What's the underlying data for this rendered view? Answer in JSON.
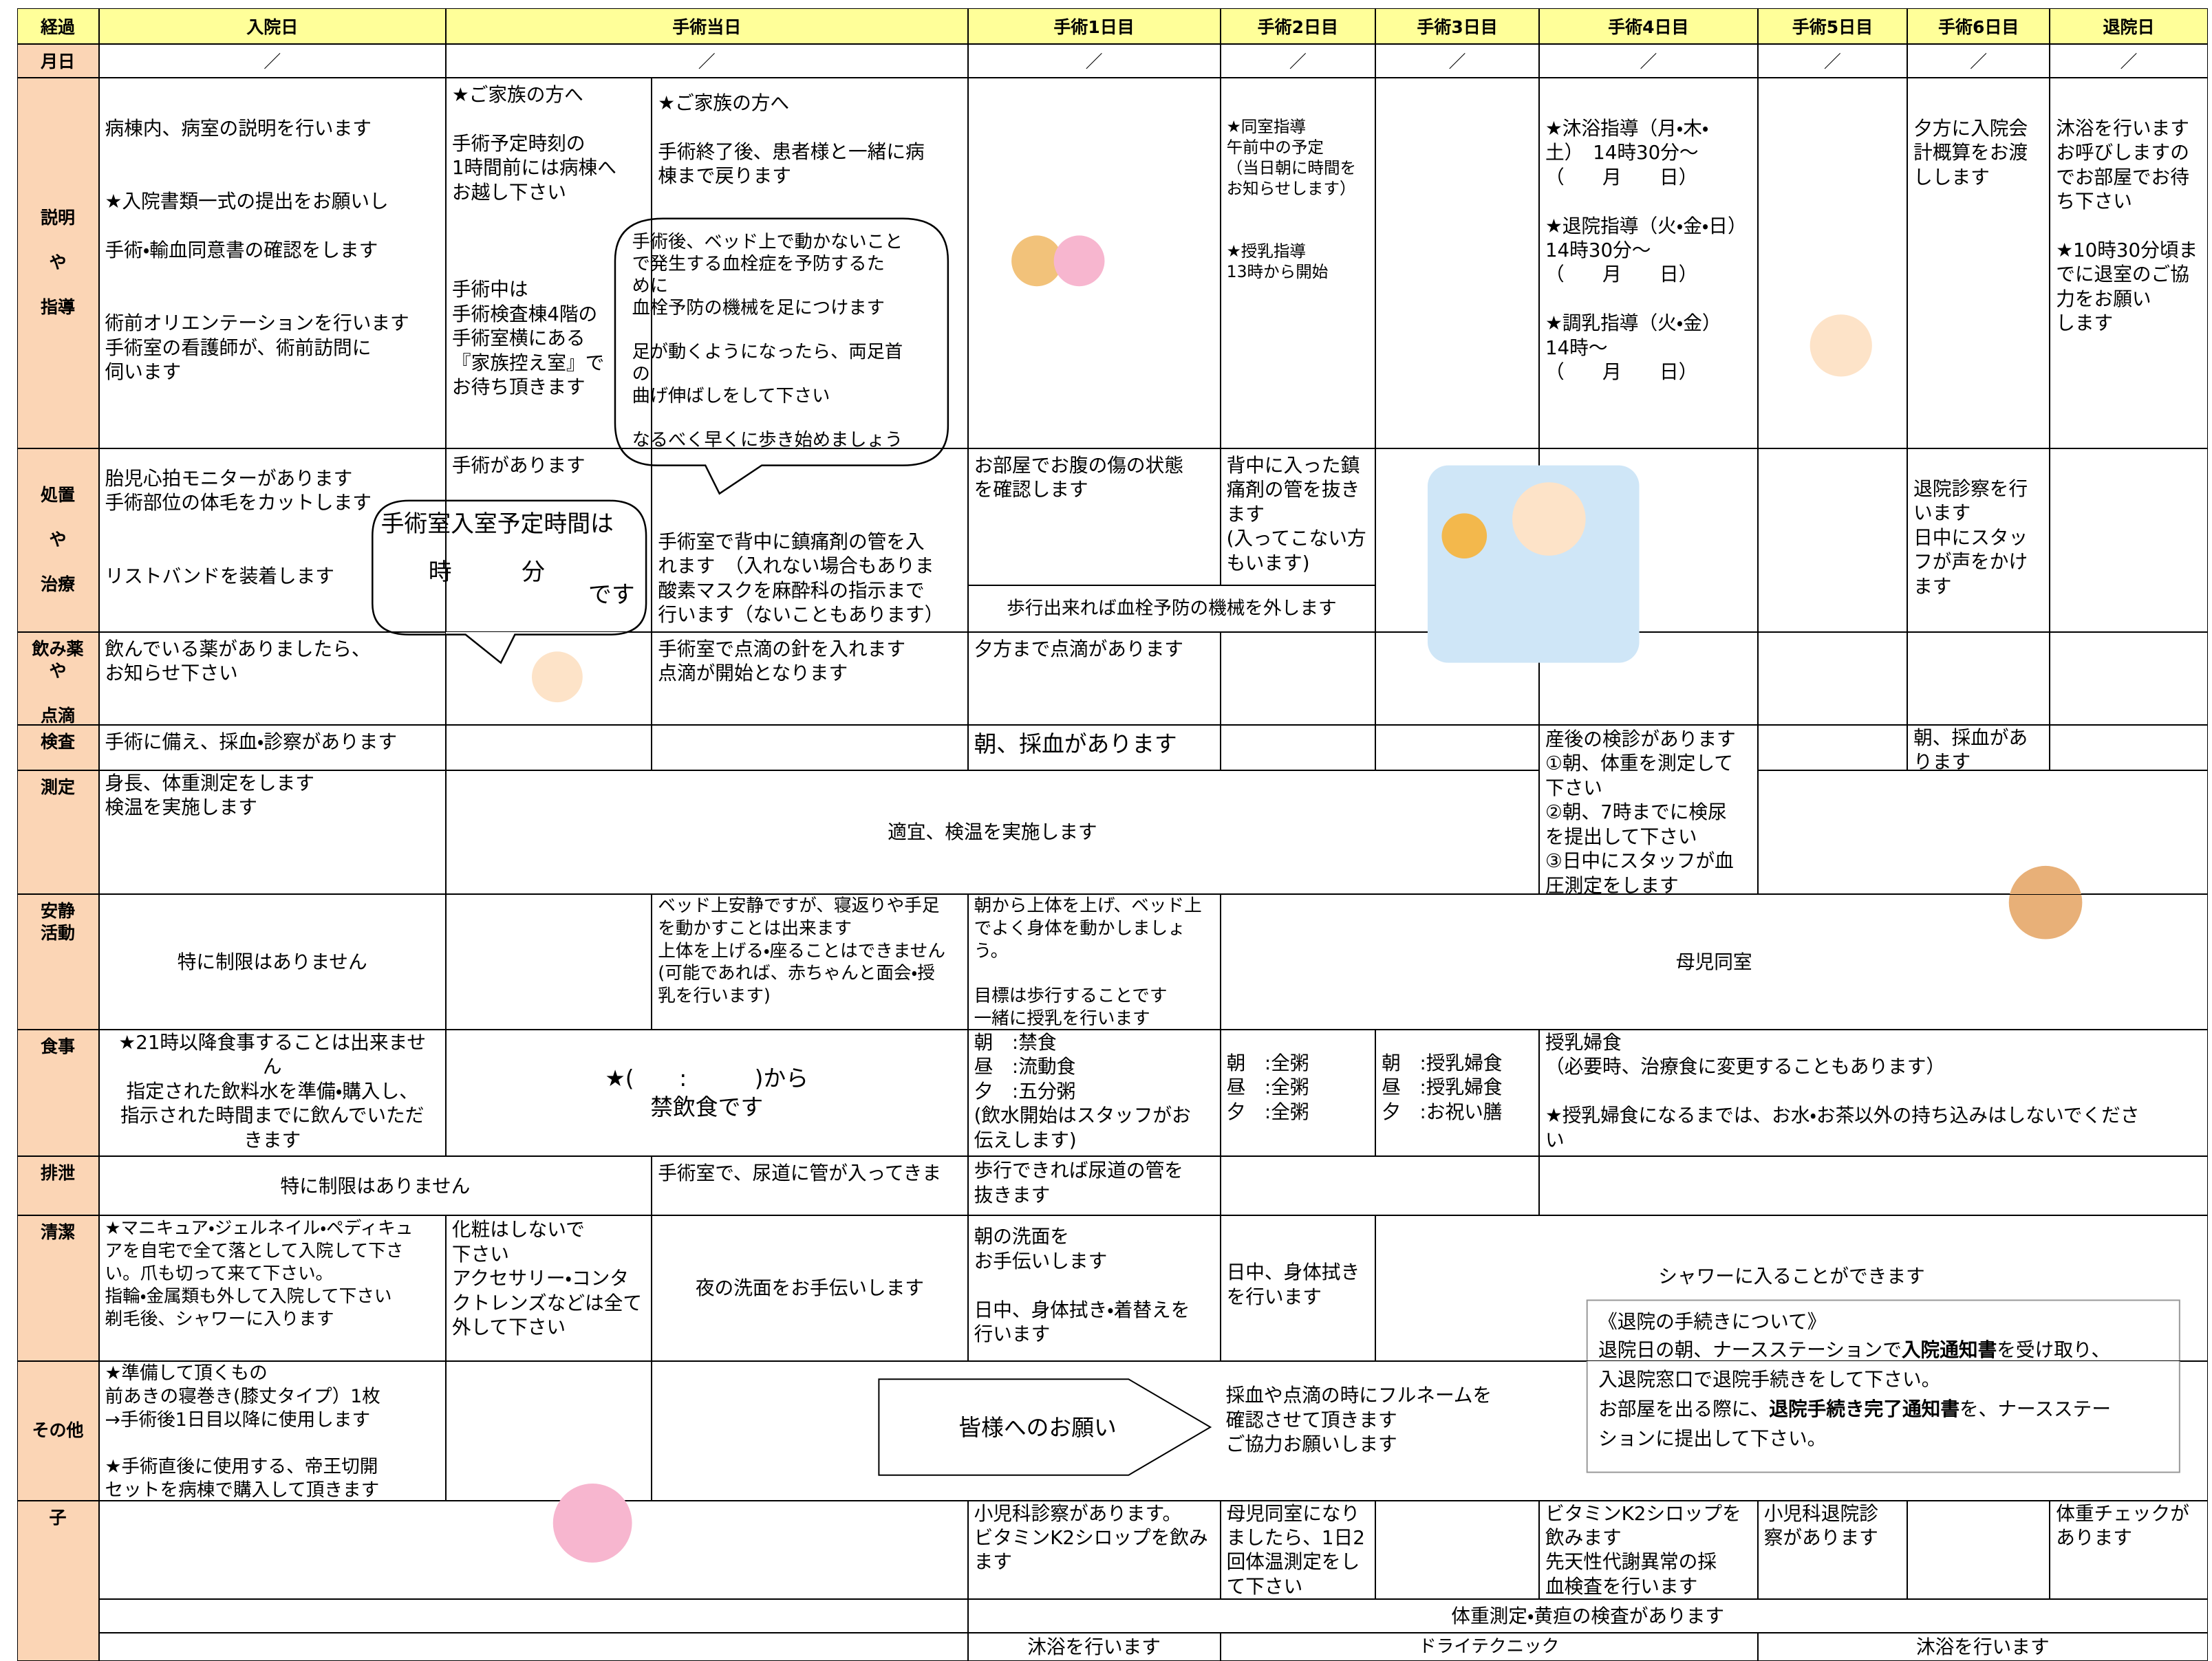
{
  "header": {
    "label": "経過",
    "columns": [
      "入院日",
      "手術当日",
      "手術1日目",
      "手術2日目",
      "手術3日目",
      "手術4日目",
      "手術5日目",
      "手術6日目",
      "退院日"
    ]
  },
  "month_row": {
    "label": "月日",
    "marks": [
      "／",
      "／",
      "／",
      "／",
      "／",
      "／",
      "／",
      "／",
      "／"
    ]
  },
  "row_labels": [
    "説明\n\nや\n\n指導",
    "処置\n\nや\n\n治療",
    "飲み薬\nや\n\n点滴",
    "検査",
    "測定",
    "安静\n活動",
    "食事",
    "排泄",
    "清潔",
    "その他",
    "子"
  ],
  "cells": [
    "病棟内、病室の説明を行います\n\n\n★入院書類一式の提出をお願いし\n\n手術・輸血同意書の確認をします\n\n\n術前オリエンテーションを行います\n手術室の看護師が、術前訪問に\n伺います",
    "★ご家族の方へ\n\n手術予定時刻の\n1時間前には病棟へ\nお越し下さい\n\n\n\n手術中は\n手術検査棟4階の\n手術室横にある\n『家族控え室』で\nお待ち頂きます",
    "★ご家族の方へ\n\n手術終了後、患者様と一緒に病\n棟まで戻ります",
    "★同室指導\n午前中の予定\n（当日朝に時間を\nお知らせします）\n\n\n★授乳指導\n13時から開始",
    "★沐浴指導（月・木・\n土）　14時30分～\n（　　月　　日）\n\n★退院指導（火・金・日）\n14時30分～\n（　　月　　日）\n\n★調乳指導（火・金）\n14時～\n（　　月　　日）",
    "夕方に入院会\n計概算をお渡\nしします",
    "沐浴を行います\nお呼びしますの\nでお部屋でお待\nち下さい\n\n★10時30分頃ま\nでに退室のご協\n力をお願い\nします",
    "胎児心拍モニターがあります\n手術部位の体毛をカットします\n\n\nリストバンドを装着します",
    "手術があります",
    "手術室で背中に鎮痛剤の管を入\nれます　（入れない場合もありま\n酸素マスクを麻酔科の指示まで\n行います（ないこともあります）",
    "お部屋でお腹の傷の状態\nを確認します",
    "背中に入った鎮\n痛剤の管を抜き\nます\n(入ってこない方\nもいます)",
    "歩行出来れば血栓予防の機械を外します",
    "退院診察を行\nいます\n日中にスタッ\nフが声をかけ\nます",
    "飲んでいる薬がありましたら、\nお知らせ下さい",
    "手術室で点滴の針を入れます\n点滴が開始となります",
    "夕方まで点滴があります",
    "手術に備え、採血・診察があります",
    "朝、採血があります",
    "産後の検診があります\n①朝、体重を測定して\n下さい\n②朝、7時までに検尿\nを提出して下さい\n③日中にスタッフが血\n圧測定をします",
    "朝、採血があ\nります",
    "身長、体重測定をします\n検温を実施します",
    "適宜、検温を実施します",
    "特に制限はありません",
    "ベッド上安静ですが、寝返りや手足\nを動かすことは出来ます\n上体を上げる・座ることはできません\n(可能であれば、赤ちゃんと面会・授\n乳を行います)",
    "朝から上体を上げ、ベッド上\nでよく身体を動かしましょう。\n\n目標は歩行することです\n一緒に授乳を行います",
    "母児同室",
    "★21時以降食事することは出来ませ\nん\n指定された飲料水を準備・購入し、\n指示された時間までに飲んでいただ\nきます",
    "★(　　:　　　)から\n禁飲食です",
    "朝　:禁食\n昼　:流動食\n夕　:五分粥\n(飲水開始はスタッフがお\n伝えします)",
    "朝　:全粥\n昼　:全粥\n夕　:全粥",
    "朝　:授乳婦食\n昼　:授乳婦食\n夕　:お祝い膳",
    "授乳婦食\n（必要時、治療食に変更することもあります）\n\n★授乳婦食になるまでは、お水・お茶以外の持ち込みはしないでくださ\nい",
    "特に制限はありません",
    "手術室で、尿道に管が入ってきま",
    "歩行できれば尿道の管を\n抜きます",
    "★マニキュア・ジェルネイル・ペディキュ\nアを自宅で全て落として入院して下さ\nい。爪も切って来て下さい。\n指輪・金属類も外して入院して下さい\n剃毛後、シャワーに入ります",
    "化粧はしないで\n下さい\nアクセサリー・コンタ\nクトレンズなどは全て\n外して下さい",
    "夜の洗面をお手伝いします",
    "朝の洗面を\nお手伝いします\n\n日中、身体拭き・着替えを\n行います",
    "日中、身体拭き\nを行います",
    "シャワーに入ることができます",
    "★準備して頂くもの\n前あきの寝巻き(膝丈タイプ）1枚\n→手術後1日目以降に使用します\n\n★手術直後に使用する、帝王切開\nセットを病棟で購入して頂きます",
    "採血や点滴の時にフルネームを\n確認させて頂きます\nご協力お願いします",
    "小児科診察があります。\nビタミンK2シロップを飲み\nます",
    "母児同室になり\nましたら、1日2\n回体温測定をし\nて下さい",
    "ビタミンK2シロップを\n飲みます\n先天性代謝異常の採\n血検査を行います",
    "小児科退院診\n察があります",
    "体重チェックが\nあります",
    "体重測定・黄疸の検査があります",
    "沐浴を行います",
    "ドライテクニック",
    "沐浴を行います"
  ],
  "callouts": {
    "entry_time": [
      "手術室入室予定時間は",
      "時　　　分",
      "です"
    ],
    "thrombosis": "手術後、ベッド上で動かないこと\nで発生する血栓症を予防するた\nめに\n血栓予防の機械を足につけます\n\n足が動くようになったら、両足首\nの\n曲げ伸ばしをして下さい\n\nなるべく早くに歩き始めましょう",
    "request": "皆様へのお願い"
  },
  "notice": {
    "title": "《退院の手続きについて》",
    "lines": [
      [
        "退院日の朝、ナースステーションで",
        "入院通知書",
        "を受け取り、"
      ],
      [
        "入退院窓口で退院手続きをして下さい。"
      ],
      [
        "お部屋を出る際に、",
        "退院手続き完了通知書",
        "を、ナースステー"
      ],
      [
        "ションに提出して下さい。"
      ]
    ]
  }
}
